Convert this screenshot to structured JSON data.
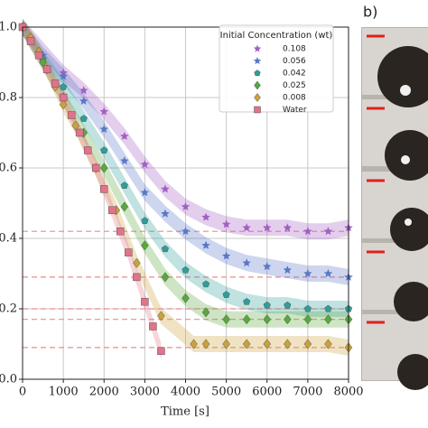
{
  "chart_data": {
    "type": "scatter",
    "panel_label": "b)",
    "x_label": "Time [s]",
    "legend_title": "Initial Concentration (wt)",
    "legend": "upper right",
    "grid": true,
    "xlim": [
      0,
      8000
    ],
    "xticks": [
      0,
      1000,
      2000,
      3000,
      4000,
      5000,
      6000,
      7000,
      8000
    ],
    "ylim": [
      0,
      1
    ],
    "yticks": [
      {
        "value": 0,
        "label": "0.0"
      },
      0.2,
      0.4,
      0.6,
      0.8,
      {
        "value": 1,
        "label": "1.0"
      }
    ],
    "reference_lines": [
      0.42,
      0.29,
      0.2,
      0.17,
      0.09
    ],
    "series": [
      {
        "name": "0.108",
        "color": "#a25fc4",
        "marker": "star",
        "x": [
          0,
          1000,
          1500,
          2000,
          2500,
          3000,
          3500,
          4000,
          4500,
          5000,
          5500,
          6000,
          6500,
          7000,
          7500,
          8000
        ],
        "values": [
          1.0,
          0.87,
          0.82,
          0.76,
          0.69,
          0.61,
          0.54,
          0.49,
          0.46,
          0.44,
          0.43,
          0.43,
          0.43,
          0.42,
          0.42,
          0.43
        ]
      },
      {
        "name": "0.056",
        "color": "#5a78c8",
        "marker": "star",
        "x": [
          0,
          500,
          1000,
          1500,
          2000,
          2500,
          3000,
          3500,
          4000,
          4500,
          5000,
          5500,
          6000,
          6500,
          7000,
          7500,
          8000
        ],
        "values": [
          1.0,
          0.92,
          0.86,
          0.79,
          0.71,
          0.62,
          0.53,
          0.47,
          0.42,
          0.38,
          0.35,
          0.33,
          0.32,
          0.31,
          0.3,
          0.3,
          0.29
        ]
      },
      {
        "name": "0.042",
        "color": "#2e9e9a",
        "marker": "pentagon",
        "x": [
          0,
          500,
          1000,
          1500,
          2000,
          2500,
          3000,
          3500,
          4000,
          4500,
          5000,
          5500,
          6000,
          6500,
          7000,
          7500,
          8000
        ],
        "values": [
          1.0,
          0.91,
          0.83,
          0.74,
          0.65,
          0.55,
          0.45,
          0.37,
          0.31,
          0.27,
          0.24,
          0.22,
          0.21,
          0.21,
          0.2,
          0.2,
          0.2
        ]
      },
      {
        "name": "0.025",
        "color": "#58a83c",
        "marker": "diamond",
        "x": [
          0,
          500,
          1000,
          1500,
          2000,
          2500,
          3000,
          3500,
          4000,
          4500,
          5000,
          5500,
          6000,
          6500,
          7000,
          7500,
          8000
        ],
        "values": [
          1.0,
          0.9,
          0.8,
          0.7,
          0.6,
          0.49,
          0.38,
          0.29,
          0.23,
          0.19,
          0.17,
          0.17,
          0.17,
          0.17,
          0.17,
          0.17,
          0.17
        ]
      },
      {
        "name": "0.008",
        "color": "#c9a23a",
        "marker": "diamond",
        "x": [
          0,
          200,
          400,
          600,
          800,
          1000,
          1300,
          1800,
          2300,
          2800,
          3400,
          4200,
          4500,
          5000,
          5500,
          6000,
          6500,
          7000,
          7500,
          8000
        ],
        "values": [
          1.0,
          0.97,
          0.93,
          0.88,
          0.83,
          0.78,
          0.72,
          0.6,
          0.48,
          0.33,
          0.18,
          0.1,
          0.1,
          0.1,
          0.1,
          0.1,
          0.1,
          0.1,
          0.1,
          0.09
        ]
      },
      {
        "name": "Water",
        "color": "#e2738a",
        "marker": "square",
        "x": [
          0,
          200,
          400,
          600,
          800,
          1000,
          1200,
          1400,
          1600,
          1800,
          2000,
          2200,
          2400,
          2600,
          2800,
          3000,
          3200,
          3400
        ],
        "values": [
          1.0,
          0.96,
          0.92,
          0.88,
          0.84,
          0.8,
          0.75,
          0.7,
          0.65,
          0.6,
          0.54,
          0.48,
          0.42,
          0.36,
          0.29,
          0.22,
          0.15,
          0.08
        ]
      }
    ]
  }
}
